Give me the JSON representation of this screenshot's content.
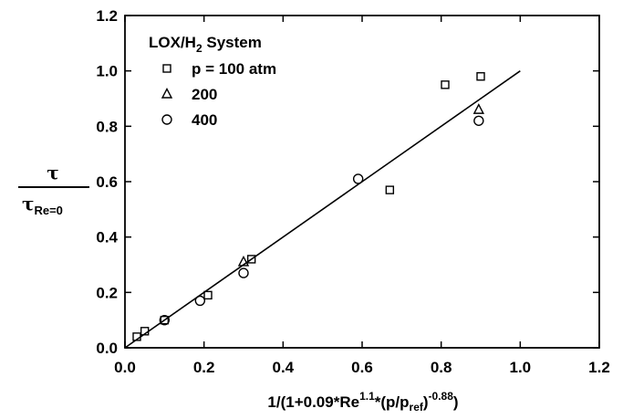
{
  "chart_data": {
    "type": "scatter",
    "title": "LOX/H2 System",
    "title_main": "LOX/H",
    "title_sub": "2",
    "title_end": " System",
    "xlabel": "1/(1+0.09*Re^1.1*(p/p_ref)^-0.88)",
    "xlabel_parts": {
      "a": "1/(1+0.09*Re",
      "exp1": "1.1",
      "b": "*(p/p",
      "sub": "ref",
      "c": ")",
      "exp2": "-0.88",
      "d": ")"
    },
    "ylabel": "τ / τ_Re=0",
    "ylabel_parts": {
      "num": "τ",
      "den": "τ",
      "den_sub": "Re=0"
    },
    "xlim": [
      0.0,
      1.2
    ],
    "ylim": [
      0.0,
      1.2
    ],
    "xticks": [
      "0.0",
      "0.2",
      "0.4",
      "0.6",
      "0.8",
      "1.0",
      "1.2"
    ],
    "yticks": [
      "0.0",
      "0.2",
      "0.4",
      "0.6",
      "0.8",
      "1.0",
      "1.2"
    ],
    "grid": false,
    "legend_position": "top-left",
    "series": [
      {
        "name": "p = 100 atm",
        "marker": "square",
        "points": [
          [
            0.03,
            0.04
          ],
          [
            0.05,
            0.06
          ],
          [
            0.1,
            0.1
          ],
          [
            0.21,
            0.19
          ],
          [
            0.32,
            0.32
          ],
          [
            0.67,
            0.57
          ],
          [
            0.81,
            0.95
          ],
          [
            0.9,
            0.98
          ]
        ]
      },
      {
        "name": "200",
        "marker": "triangle",
        "points": [
          [
            0.3,
            0.31
          ],
          [
            0.895,
            0.86
          ]
        ]
      },
      {
        "name": "400",
        "marker": "circle",
        "points": [
          [
            0.1,
            0.1
          ],
          [
            0.19,
            0.17
          ],
          [
            0.3,
            0.27
          ],
          [
            0.59,
            0.61
          ],
          [
            0.895,
            0.82
          ]
        ]
      }
    ],
    "fit_line": {
      "x": [
        0.0,
        1.0
      ],
      "y": [
        0.0,
        1.0
      ]
    }
  }
}
